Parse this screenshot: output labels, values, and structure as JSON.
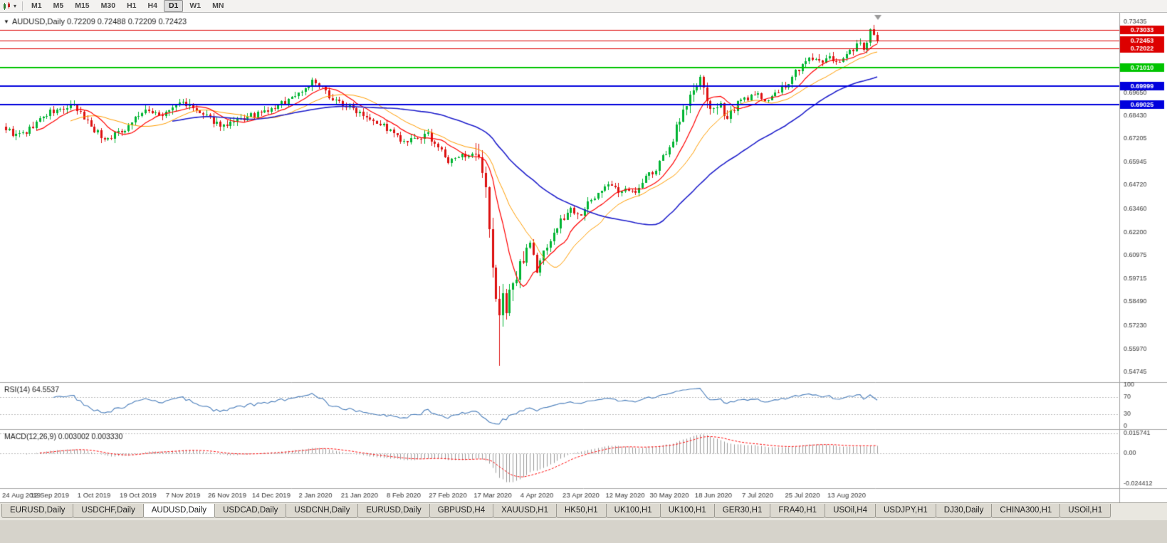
{
  "toolbar": {
    "periods": [
      "M1",
      "M5",
      "M15",
      "M30",
      "H1",
      "H4",
      "D1",
      "W1",
      "MN"
    ],
    "active_period": "D1",
    "active_period_index": 6
  },
  "tabs": {
    "items": [
      "EURUSD,Daily",
      "USDCHF,Daily",
      "AUDUSD,Daily",
      "USDCAD,Daily",
      "USDCNH,Daily",
      "EURUSD,Daily",
      "GBPUSD,H4",
      "XAUUSD,H1",
      "HK50,H1",
      "UK100,H1",
      "UK100,H1",
      "GER30,H1",
      "FRA40,H1",
      "USOil,H4",
      "USDJPY,H1",
      "DJ30,Daily",
      "CHINA300,H1",
      "USOil,H1"
    ],
    "active": "AUDUSD,Daily",
    "active_index": 2
  },
  "chart_data": {
    "type": "candlestick",
    "symbol": "AUDUSD",
    "timeframe": "Daily",
    "title": "AUDUSD,Daily 0.72209 0.72488 0.72209 0.72423",
    "open": "0.72209",
    "high": "0.72488",
    "low": "0.72209",
    "close": "0.72423",
    "x_labels": [
      "24 Aug 2019",
      "12 Sep 2019",
      "1 Oct 2019",
      "19 Oct 2019",
      "7 Nov 2019",
      "26 Nov 2019",
      "14 Dec 2019",
      "2 Jan 2020",
      "21 Jan 2020",
      "8 Feb 2020",
      "27 Feb 2020",
      "17 Mar 2020",
      "4 Apr 2020",
      "23 Apr 2020",
      "12 May 2020",
      "30 May 2020",
      "18 Jun 2020",
      "7 Jul 2020",
      "25 Jul 2020",
      "13 Aug 2020"
    ],
    "x_label_bar_step": 13,
    "y_ticks": [
      "0.73435",
      "0.69650",
      "0.68430",
      "0.67205",
      "0.65945",
      "0.64720",
      "0.63460",
      "0.62200",
      "0.60975",
      "0.59715",
      "0.58490",
      "0.57230",
      "0.55970",
      "0.54745"
    ],
    "price_max": 0.73435,
    "price_min": 0.54745,
    "n_bars": 257,
    "last_close": 0.72423,
    "anchor_closes": [
      [
        0,
        0.6775
      ],
      [
        3,
        0.6735
      ],
      [
        6,
        0.6755
      ],
      [
        10,
        0.6825
      ],
      [
        13,
        0.686
      ],
      [
        17,
        0.688
      ],
      [
        20,
        0.689
      ],
      [
        23,
        0.6835
      ],
      [
        26,
        0.677
      ],
      [
        29,
        0.6715
      ],
      [
        32,
        0.6745
      ],
      [
        35,
        0.6775
      ],
      [
        39,
        0.685
      ],
      [
        43,
        0.687
      ],
      [
        46,
        0.684
      ],
      [
        49,
        0.6885
      ],
      [
        52,
        0.692
      ],
      [
        55,
        0.688
      ],
      [
        58,
        0.6845
      ],
      [
        62,
        0.6805
      ],
      [
        65,
        0.6785
      ],
      [
        68,
        0.6815
      ],
      [
        72,
        0.684
      ],
      [
        75,
        0.6855
      ],
      [
        78,
        0.6875
      ],
      [
        82,
        0.692
      ],
      [
        85,
        0.6955
      ],
      [
        88,
        0.699
      ],
      [
        90,
        0.7025
      ],
      [
        93,
        0.6985
      ],
      [
        96,
        0.6935
      ],
      [
        100,
        0.6895
      ],
      [
        104,
        0.6865
      ],
      [
        108,
        0.6825
      ],
      [
        112,
        0.6775
      ],
      [
        117,
        0.6695
      ],
      [
        120,
        0.6715
      ],
      [
        124,
        0.674
      ],
      [
        127,
        0.668
      ],
      [
        130,
        0.6595
      ],
      [
        133,
        0.662
      ],
      [
        136,
        0.6645
      ],
      [
        139,
        0.6585
      ],
      [
        141,
        0.643
      ],
      [
        143,
        0.6
      ],
      [
        144,
        0.588
      ],
      [
        145,
        0.578
      ],
      [
        146,
        0.587
      ],
      [
        147,
        0.582
      ],
      [
        148,
        0.5925
      ],
      [
        150,
        0.5965
      ],
      [
        152,
        0.61
      ],
      [
        154,
        0.618
      ],
      [
        156,
        0.601
      ],
      [
        158,
        0.612
      ],
      [
        160,
        0.618
      ],
      [
        163,
        0.628
      ],
      [
        166,
        0.6345
      ],
      [
        169,
        0.632
      ],
      [
        172,
        0.6395
      ],
      [
        175,
        0.645
      ],
      [
        178,
        0.647
      ],
      [
        180,
        0.643
      ],
      [
        182,
        0.647
      ],
      [
        185,
        0.6425
      ],
      [
        188,
        0.652
      ],
      [
        191,
        0.6555
      ],
      [
        193,
        0.662
      ],
      [
        195,
        0.6665
      ],
      [
        197,
        0.679
      ],
      [
        200,
        0.6905
      ],
      [
        202,
        0.698
      ],
      [
        204,
        0.703
      ],
      [
        206,
        0.693
      ],
      [
        208,
        0.686
      ],
      [
        210,
        0.6885
      ],
      [
        212,
        0.6845
      ],
      [
        215,
        0.691
      ],
      [
        218,
        0.694
      ],
      [
        221,
        0.695
      ],
      [
        224,
        0.693
      ],
      [
        227,
        0.6975
      ],
      [
        230,
        0.701
      ],
      [
        232,
        0.708
      ],
      [
        234,
        0.711
      ],
      [
        236,
        0.7155
      ],
      [
        238,
        0.714
      ],
      [
        240,
        0.712
      ],
      [
        242,
        0.7155
      ],
      [
        244,
        0.7135
      ],
      [
        247,
        0.7165
      ],
      [
        249,
        0.7205
      ],
      [
        251,
        0.724
      ],
      [
        252,
        0.719
      ],
      [
        253,
        0.7215
      ],
      [
        254,
        0.729
      ],
      [
        255,
        0.726
      ],
      [
        256,
        0.7242
      ]
    ],
    "volatility": {
      "default": 0.0042,
      "zones": [
        [
          138,
          153,
          0.011
        ],
        [
          196,
          214,
          0.0065
        ]
      ]
    },
    "spikes": [
      {
        "bar": 145,
        "kind": "low",
        "price": 0.551
      },
      {
        "bar": 254,
        "kind": "high",
        "price": 0.7302
      }
    ],
    "moving_averages": [
      {
        "period": 20,
        "color": "#ff9d00",
        "width": 1
      },
      {
        "period": 10,
        "color": "#ff0000",
        "width": 1.2
      },
      {
        "period": 50,
        "color": "#2020cc",
        "width": 1.6
      }
    ],
    "hlines": [
      {
        "price": 0.73033,
        "color": "#dd0000",
        "width": 1,
        "badge": "0.73033"
      },
      {
        "price": 0.72453,
        "color": "#dd0000",
        "width": 1,
        "badge": "0.72453"
      },
      {
        "price": 0.72022,
        "color": "#dd0000",
        "width": 1,
        "badge": "0.72022"
      },
      {
        "price": 0.7101,
        "color": "#00c400",
        "width": 2,
        "badge": "0.71010"
      },
      {
        "price": 0.69999,
        "color": "#0000dd",
        "width": 2,
        "badge": "0.69999"
      },
      {
        "price": 0.69025,
        "color": "#0000dd",
        "width": 2,
        "badge": "0.69025"
      }
    ],
    "rsi": {
      "label": "RSI(14) 64.5537",
      "period": 14,
      "ticks": [
        "100",
        "70",
        "30",
        "0"
      ],
      "levels": [
        70,
        30
      ],
      "color": "#4a7ebb"
    },
    "macd": {
      "label": "MACD(12,26,9) 0.003002 0.003330",
      "fast": 12,
      "slow": 26,
      "signal": 9,
      "ticks": [
        "0.015741",
        "0.00",
        "-0.024412"
      ],
      "range": [
        -0.024412,
        0.015741
      ],
      "hist_color": "#9a9a9a",
      "signal_color": "#ff1010"
    },
    "colors": {
      "bull": "#00b432",
      "bear": "#dd1111",
      "axis_text": "#3a3a3a",
      "panel_border": "#a6a6a6",
      "level_dash": "#bdbdbd",
      "background": "#ffffff"
    }
  }
}
